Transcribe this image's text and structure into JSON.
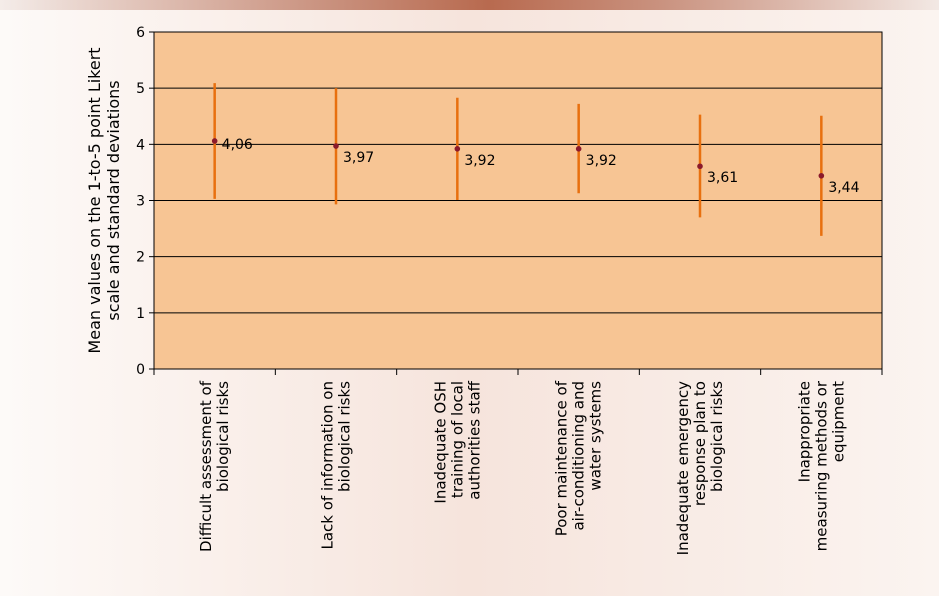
{
  "chart_data": {
    "type": "scatter",
    "title": "",
    "ylabel_lines": [
      "Mean values on the 1-to-5 point Likert",
      "scale and standard deviations"
    ],
    "ylim": [
      0,
      6
    ],
    "yticks": [
      "0",
      "1",
      "2",
      "3",
      "4",
      "5",
      "6"
    ],
    "grid": true,
    "plot_background": "#f7c594",
    "error_bar_color": "#e8700f",
    "point_color": "#8b1a2b",
    "categories": [
      [
        "Difficult assessment of",
        "biological risks"
      ],
      [
        "Lack of information on",
        "biological risks"
      ],
      [
        "Inadequate OSH",
        "training of local",
        "authorities staff"
      ],
      [
        "Poor maintenance of",
        "air-conditioning and",
        "water systems"
      ],
      [
        "Inadequate emergency",
        "response plan to",
        "biological risks"
      ],
      [
        "Inappropriate",
        "measuring methods or",
        "equipment"
      ]
    ],
    "values": [
      4.06,
      3.97,
      3.92,
      3.92,
      3.61,
      3.44
    ],
    "value_labels": [
      "4,06",
      "3,97",
      "3,92",
      "3,92",
      "3,61",
      "3,44"
    ],
    "error_low": [
      3.03,
      2.93,
      3.01,
      3.13,
      2.7,
      2.37
    ],
    "error_high": [
      5.09,
      5.0,
      4.83,
      4.72,
      4.53,
      4.51
    ]
  }
}
